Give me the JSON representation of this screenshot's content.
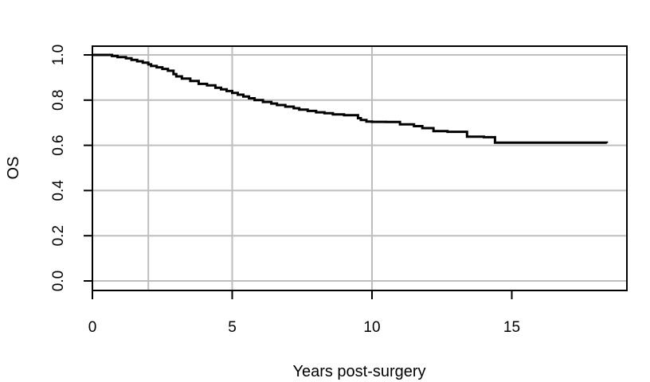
{
  "chart_data": {
    "type": "line",
    "title": "",
    "xlabel": "Years post-surgery",
    "ylabel": "OS",
    "xlim": [
      0,
      19
    ],
    "ylim": [
      0,
      1
    ],
    "x_ticks": [
      0,
      5,
      10,
      15
    ],
    "x_tick_labels": [
      "0",
      "5",
      "10",
      "15"
    ],
    "y_ticks": [
      0,
      0.2,
      0.4,
      0.6,
      0.8,
      1.0
    ],
    "y_tick_labels": [
      "0.0",
      "0.2",
      "0.4",
      "0.6",
      "0.8",
      "1.0"
    ],
    "grid": {
      "vertical": [
        2,
        5,
        10
      ],
      "horizontal": [
        0,
        0.2,
        0.4,
        0.6,
        0.8,
        1.0
      ],
      "color": "#bebebe"
    },
    "line_color": "#000000",
    "series": [
      {
        "step": true,
        "x": [
          0,
          0.7,
          0.9,
          1.2,
          1.4,
          1.6,
          1.8,
          2.0,
          2.1,
          2.3,
          2.5,
          2.7,
          2.9,
          3.0,
          3.2,
          3.5,
          3.8,
          4.1,
          4.4,
          4.6,
          4.8,
          5.0,
          5.2,
          5.4,
          5.6,
          5.8,
          6.1,
          6.4,
          6.6,
          6.9,
          7.2,
          7.4,
          7.7,
          8.0,
          8.3,
          8.6,
          9.0,
          9.5,
          9.6,
          9.8,
          10.0,
          10.5,
          11.0,
          11.5,
          11.8,
          12.2,
          12.7,
          13.4,
          14.0,
          14.4,
          18.4
        ],
        "y": [
          1.0,
          0.995,
          0.99,
          0.985,
          0.978,
          0.972,
          0.966,
          0.958,
          0.951,
          0.945,
          0.938,
          0.93,
          0.915,
          0.905,
          0.895,
          0.885,
          0.872,
          0.865,
          0.855,
          0.848,
          0.84,
          0.832,
          0.824,
          0.816,
          0.808,
          0.8,
          0.792,
          0.785,
          0.778,
          0.771,
          0.764,
          0.758,
          0.752,
          0.746,
          0.742,
          0.737,
          0.733,
          0.72,
          0.712,
          0.705,
          0.704,
          0.703,
          0.693,
          0.685,
          0.676,
          0.663,
          0.66,
          0.638,
          0.636,
          0.612,
          0.61
        ]
      }
    ]
  }
}
